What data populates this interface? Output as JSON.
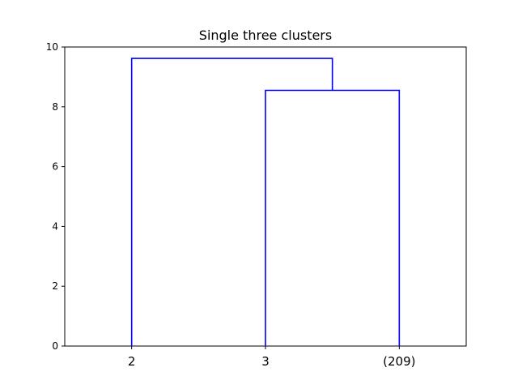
{
  "chart_data": {
    "type": "dendrogram",
    "title": "Single  three clusters",
    "xlabel": "",
    "ylabel": "",
    "ylim": [
      0,
      10
    ],
    "yticks": [
      0,
      2,
      4,
      6,
      8,
      10
    ],
    "leaves": [
      "2",
      "3",
      "(209)"
    ],
    "merges": [
      {
        "left": "3",
        "right": "(209)",
        "height": 8.55
      },
      {
        "left": "2",
        "right": "3+(209)",
        "height": 9.62
      }
    ],
    "grid": false,
    "link_color": "#0000ff"
  }
}
